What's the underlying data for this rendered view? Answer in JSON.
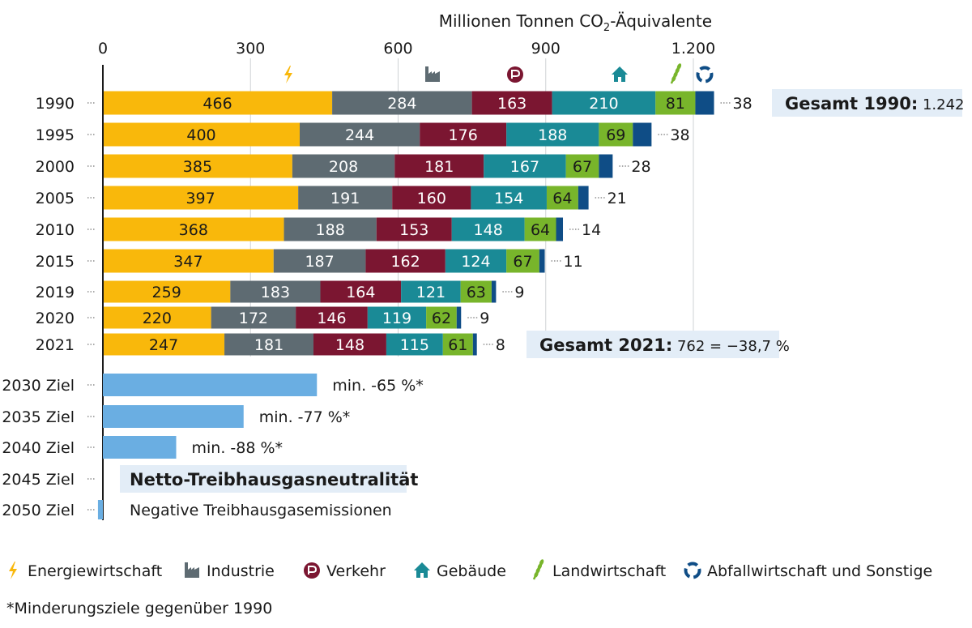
{
  "chart_data": {
    "type": "bar",
    "orientation": "horizontal",
    "stacked": true,
    "title": "Millionen Tonnen CO2-Äquivalente",
    "xlim": [
      0,
      1242
    ],
    "grid": true,
    "x_ticks": [
      {
        "value": 0,
        "label": "0"
      },
      {
        "value": 300,
        "label": "300"
      },
      {
        "value": 600,
        "label": "600"
      },
      {
        "value": 900,
        "label": "900"
      },
      {
        "value": 1200,
        "label": "1.200"
      }
    ],
    "categories": [
      "1990",
      "1995",
      "2000",
      "2005",
      "2010",
      "2015",
      "2019",
      "2020",
      "2021"
    ],
    "series": [
      {
        "name": "Energiewirtschaft",
        "color": "#f9b80b",
        "icon": "lightning-icon",
        "values": [
          466,
          400,
          385,
          397,
          368,
          347,
          259,
          220,
          247
        ]
      },
      {
        "name": "Industrie",
        "color": "#5e6b72",
        "icon": "factory-icon",
        "values": [
          284,
          244,
          208,
          191,
          188,
          187,
          183,
          172,
          181
        ]
      },
      {
        "name": "Verkehr",
        "color": "#7b1631",
        "icon": "car-icon",
        "values": [
          163,
          176,
          181,
          160,
          153,
          162,
          164,
          146,
          148
        ]
      },
      {
        "name": "Gebäude",
        "color": "#1a8a96",
        "icon": "house-icon",
        "values": [
          210,
          188,
          167,
          154,
          148,
          124,
          121,
          119,
          115
        ]
      },
      {
        "name": "Landwirtschaft",
        "color": "#78b52b",
        "icon": "wheat-icon",
        "values": [
          81,
          69,
          67,
          64,
          64,
          67,
          63,
          62,
          61
        ]
      },
      {
        "name": "Abfallwirtschaft und Sonstige",
        "color": "#0f4d86",
        "icon": "recycle-icon",
        "values": [
          38,
          38,
          28,
          21,
          14,
          11,
          9,
          9,
          8
        ]
      }
    ],
    "targets": [
      {
        "label": "2030 Ziel",
        "value": 435,
        "text": "min. -65 %*"
      },
      {
        "label": "2035 Ziel",
        "value": 286,
        "text": "min. -77 %*"
      },
      {
        "label": "2040 Ziel",
        "value": 149,
        "text": "min. -88 %*"
      },
      {
        "label": "2045 Ziel",
        "value": 0,
        "text": "Netto-Treibhausgasneutralität"
      },
      {
        "label": "2050 Ziel",
        "value": -10,
        "text": "Negative Treibhausgasemissionen"
      }
    ],
    "target_color": "#6aaee2",
    "annotations": [
      {
        "category": "1990",
        "bold": "Gesamt 1990:",
        "text": "1.242"
      },
      {
        "category": "2021",
        "bold": "Gesamt 2021:",
        "text": "762 = −38,7 %"
      }
    ],
    "annotation_bg": "#e3edf7",
    "footnote": "*Minderungsziele gegenüber 1990"
  }
}
